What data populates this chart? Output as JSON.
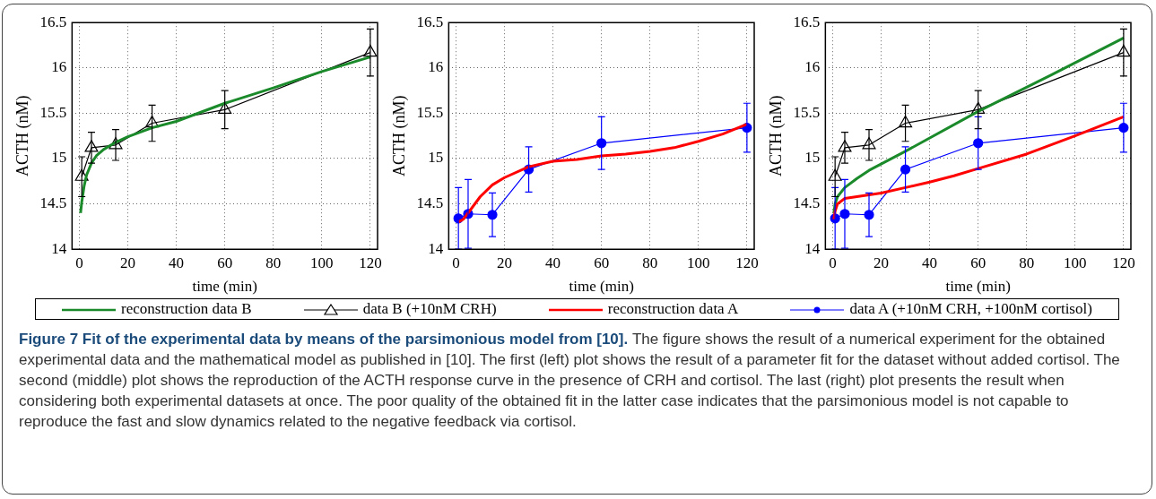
{
  "chart_data": [
    {
      "type": "line",
      "xlabel": "time (min)",
      "ylabel": "ACTH (nM)",
      "xlim": [
        -3,
        123
      ],
      "ylim": [
        14,
        16.5
      ],
      "xticks": [
        0,
        20,
        40,
        60,
        80,
        100,
        120
      ],
      "yticks": [
        14,
        14.5,
        15,
        15.5,
        16,
        16.5
      ],
      "grid": true,
      "legend": "bottom",
      "series": [
        {
          "name": "reconstruction data B",
          "type": "line",
          "color": "#1a8a2a",
          "marker": "none",
          "x": [
            0.5,
            1,
            2,
            3,
            5,
            7,
            10,
            15,
            20,
            30,
            40,
            60,
            80,
            100,
            120
          ],
          "values": [
            14.4,
            14.52,
            14.7,
            14.82,
            14.95,
            15.03,
            15.1,
            15.18,
            15.24,
            15.34,
            15.41,
            15.61,
            15.78,
            15.96,
            16.12
          ]
        },
        {
          "name": "data B (+10nM CRH)",
          "type": "line",
          "color": "#000000",
          "marker": "triangle",
          "x": [
            1,
            5,
            15,
            30,
            60,
            120
          ],
          "values": [
            14.8,
            15.12,
            15.15,
            15.39,
            15.54,
            16.17
          ],
          "errors": [
            0.22,
            0.17,
            0.17,
            0.2,
            0.21,
            0.26
          ]
        }
      ]
    },
    {
      "type": "line",
      "xlabel": "time (min)",
      "ylabel": "ACTH (nM)",
      "xlim": [
        -3,
        123
      ],
      "ylim": [
        14,
        16.5
      ],
      "xticks": [
        0,
        20,
        40,
        60,
        80,
        100,
        120
      ],
      "yticks": [
        14,
        14.5,
        15,
        15.5,
        16,
        16.5
      ],
      "grid": true,
      "legend": "bottom",
      "series": [
        {
          "name": "reconstruction data A",
          "type": "line",
          "color": "#ff0000",
          "marker": "none",
          "x": [
            1,
            3,
            5,
            10,
            15,
            20,
            30,
            40,
            50,
            60,
            70,
            80,
            90,
            100,
            110,
            120
          ],
          "values": [
            14.3,
            14.33,
            14.4,
            14.58,
            14.71,
            14.79,
            14.91,
            14.97,
            14.99,
            15.03,
            15.05,
            15.08,
            15.12,
            15.19,
            15.27,
            15.38
          ]
        },
        {
          "name": "data A (+10nM CRH, +100nM cortisol)",
          "type": "line",
          "color": "#0000ff",
          "marker": "circle",
          "x": [
            1,
            5,
            15,
            30,
            60,
            120
          ],
          "values": [
            14.34,
            14.39,
            14.38,
            14.88,
            15.17,
            15.34
          ],
          "errors": [
            0.34,
            0.38,
            0.24,
            0.25,
            0.29,
            0.27
          ]
        }
      ]
    },
    {
      "type": "line",
      "xlabel": "time (min)",
      "ylabel": "ACTH (nM)",
      "xlim": [
        -3,
        123
      ],
      "ylim": [
        14,
        16.5
      ],
      "xticks": [
        0,
        20,
        40,
        60,
        80,
        100,
        120
      ],
      "yticks": [
        14,
        14.5,
        15,
        15.5,
        16,
        16.5
      ],
      "grid": true,
      "legend": "bottom",
      "annotations": [
        "Figure 7 Fit of the experimental data by means of the parsimonious model from [10].",
        "The figure shows the result of a numerical experiment for the obtained experimental data and the mathematical model as published in [10]. The first (left) plot shows the result of a parameter fit for the dataset without added cortisol. The second (middle) plot shows the reproduction of the ACTH response curve in the presence of CRH and cortisol. The last (right) plot presents the result when considering both experimental datasets at once. The poor quality of the obtained fit in the latter case indicates that the parsimonious model is not capable to reproduce the fast and slow dynamics related to the negative feedback via cortisol."
      ],
      "series": [
        {
          "name": "reconstruction data A",
          "type": "line",
          "color": "#ff0000",
          "marker": "none",
          "x": [
            0.5,
            1,
            2,
            5,
            15,
            20,
            30,
            40,
            50,
            60,
            80,
            100,
            120
          ],
          "values": [
            14.33,
            14.42,
            14.5,
            14.56,
            14.6,
            14.62,
            14.68,
            14.74,
            14.81,
            14.89,
            15.05,
            15.25,
            15.46
          ]
        },
        {
          "name": "data A (+10nM CRH, +100nM cortisol)",
          "type": "line",
          "color": "#0000ff",
          "marker": "circle",
          "x": [
            1,
            5,
            15,
            30,
            60,
            120
          ],
          "values": [
            14.34,
            14.39,
            14.38,
            14.88,
            15.17,
            15.34
          ],
          "errors": [
            0.34,
            0.38,
            0.24,
            0.25,
            0.29,
            0.27
          ]
        },
        {
          "name": "reconstruction data B",
          "type": "line",
          "color": "#1a8a2a",
          "marker": "none",
          "x": [
            0.5,
            1,
            2,
            5,
            10,
            15,
            30,
            60,
            90,
            120
          ],
          "values": [
            14.4,
            14.5,
            14.58,
            14.68,
            14.78,
            14.87,
            15.08,
            15.52,
            15.92,
            16.33
          ]
        },
        {
          "name": "data B (+10nM CRH)",
          "type": "line",
          "color": "#000000",
          "marker": "triangle",
          "x": [
            1,
            5,
            15,
            30,
            60,
            120
          ],
          "values": [
            14.8,
            15.12,
            15.15,
            15.39,
            15.54,
            16.17
          ],
          "errors": [
            0.22,
            0.17,
            0.17,
            0.2,
            0.21,
            0.26
          ]
        }
      ]
    }
  ]
}
